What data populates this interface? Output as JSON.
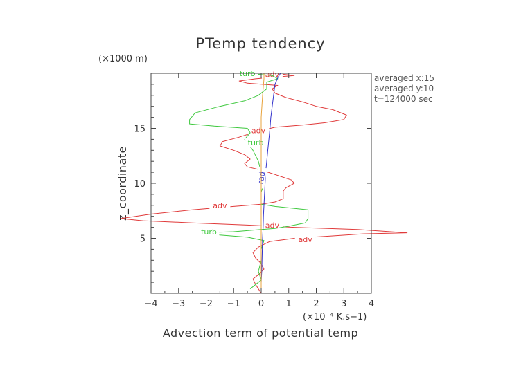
{
  "chart_data": {
    "type": "line",
    "title": "PTemp tendency",
    "xlabel": "Advection term of potential temp",
    "ylabel": "z_coordinate",
    "x_unit": "(×10⁻⁴ K.s−1)",
    "y_unit": "(×1000 m)",
    "xlim": [
      -4,
      4
    ],
    "ylim": [
      0,
      20
    ],
    "xticks": [
      -4,
      -3,
      -2,
      -1,
      0,
      1,
      2,
      3,
      4
    ],
    "yticks": [
      5,
      10,
      15
    ],
    "grid": false,
    "info": [
      "averaged  x:15",
      "averaged  y:10",
      "t=124000 sec"
    ],
    "series": [
      {
        "name": "adv",
        "color": "#e03a3a",
        "labels": [
          {
            "x": -1.5,
            "y": 8.0
          },
          {
            "x": -0.1,
            "y": 14.8
          },
          {
            "x": 0.4,
            "y": 6.2
          },
          {
            "x": 1.6,
            "y": 4.9
          },
          {
            "x": 0.4,
            "y": 19.9
          }
        ],
        "points": [
          [
            0,
            0
          ],
          [
            -0.1,
            0.4
          ],
          [
            -0.2,
            0.8
          ],
          [
            -0.3,
            1.3
          ],
          [
            -0.1,
            1.7
          ],
          [
            0.1,
            2.2
          ],
          [
            0,
            2.7
          ],
          [
            -0.2,
            3.2
          ],
          [
            -0.3,
            3.7
          ],
          [
            -0.1,
            4.2
          ],
          [
            0.3,
            4.7
          ],
          [
            1.2,
            5.0
          ],
          [
            2.5,
            5.2
          ],
          [
            3.7,
            5.4
          ],
          [
            5.3,
            5.5
          ],
          [
            3.5,
            5.8
          ],
          [
            1.2,
            6.0
          ],
          [
            -0.5,
            6.2
          ],
          [
            -2.5,
            6.4
          ],
          [
            -4.3,
            6.6
          ],
          [
            -5.1,
            6.8
          ],
          [
            -4.0,
            7.2
          ],
          [
            -2.5,
            7.6
          ],
          [
            -1.0,
            7.9
          ],
          [
            0,
            8.1
          ],
          [
            0.5,
            8.3
          ],
          [
            0.8,
            8.6
          ],
          [
            0.8,
            9.0
          ],
          [
            0.8,
            9.3
          ],
          [
            0.9,
            9.6
          ],
          [
            1.2,
            10.0
          ],
          [
            1.1,
            10.3
          ],
          [
            0.5,
            10.8
          ],
          [
            0,
            11.2
          ],
          [
            -0.5,
            11.5
          ],
          [
            -0.6,
            11.8
          ],
          [
            -0.4,
            12.2
          ],
          [
            -0.6,
            12.6
          ],
          [
            -1.0,
            13.0
          ],
          [
            -1.5,
            13.4
          ],
          [
            -1.4,
            13.8
          ],
          [
            -0.8,
            14.2
          ],
          [
            -0.3,
            14.6
          ],
          [
            0,
            14.8
          ],
          [
            0.5,
            15.1
          ],
          [
            1.5,
            15.3
          ],
          [
            2.3,
            15.5
          ],
          [
            3.0,
            15.8
          ],
          [
            3.1,
            16.2
          ],
          [
            2.6,
            16.7
          ],
          [
            2.0,
            17.0
          ],
          [
            1.5,
            17.4
          ],
          [
            0.9,
            17.8
          ],
          [
            0.5,
            18.2
          ],
          [
            0.4,
            18.6
          ],
          [
            0.6,
            18.9
          ],
          [
            -0.5,
            19.1
          ],
          [
            -0.8,
            19.3
          ],
          [
            -0.2,
            19.5
          ],
          [
            1.2,
            19.8
          ],
          [
            0.5,
            20.0
          ]
        ]
      },
      {
        "name": "turb",
        "color": "#3ec83e",
        "labels": [
          {
            "x": -1.9,
            "y": 5.6
          },
          {
            "x": -0.2,
            "y": 13.7
          },
          {
            "x": -0.5,
            "y": 20.0
          }
        ],
        "points": [
          [
            -0.4,
            0.4
          ],
          [
            -0.2,
            0.8
          ],
          [
            0,
            1.2
          ],
          [
            -0.1,
            2.0
          ],
          [
            0,
            3.0
          ],
          [
            0,
            4.0
          ],
          [
            0.1,
            4.8
          ],
          [
            -0.5,
            5.1
          ],
          [
            -1.5,
            5.3
          ],
          [
            -2.2,
            5.5
          ],
          [
            -1.0,
            5.6
          ],
          [
            0,
            5.8
          ],
          [
            0.5,
            5.9
          ],
          [
            1.0,
            6.1
          ],
          [
            1.6,
            6.4
          ],
          [
            1.7,
            6.8
          ],
          [
            1.7,
            7.2
          ],
          [
            1.7,
            7.6
          ],
          [
            0.5,
            7.9
          ],
          [
            0,
            8.1
          ],
          [
            0,
            8.6
          ],
          [
            0,
            9.2
          ],
          [
            0.1,
            10.0
          ],
          [
            0,
            11.0
          ],
          [
            -0.1,
            12.0
          ],
          [
            -0.3,
            13.0
          ],
          [
            -0.6,
            14.0
          ],
          [
            -0.4,
            14.6
          ],
          [
            -0.5,
            15.0
          ],
          [
            -1.7,
            15.2
          ],
          [
            -2.6,
            15.4
          ],
          [
            -2.6,
            15.8
          ],
          [
            -2.4,
            16.4
          ],
          [
            -1.5,
            17.0
          ],
          [
            -0.6,
            17.5
          ],
          [
            -0.1,
            18.0
          ],
          [
            0.2,
            18.6
          ],
          [
            0.2,
            19.2
          ],
          [
            0.6,
            19.5
          ],
          [
            0.4,
            19.8
          ],
          [
            -0.5,
            20.0
          ]
        ]
      },
      {
        "name": "rad",
        "color": "#3333cc",
        "labels": [
          {
            "x": 0.0,
            "y": 10.5
          }
        ],
        "points": [
          [
            0,
            0
          ],
          [
            0,
            1.0
          ],
          [
            0.02,
            2.0
          ],
          [
            0.03,
            3.0
          ],
          [
            0.04,
            4.0
          ],
          [
            0.05,
            5.0
          ],
          [
            0.07,
            6.0
          ],
          [
            0.08,
            7.0
          ],
          [
            0.1,
            8.0
          ],
          [
            0.12,
            9.0
          ],
          [
            0.14,
            10.0
          ],
          [
            0.16,
            11.0
          ],
          [
            0.2,
            12.0
          ],
          [
            0.24,
            13.0
          ],
          [
            0.28,
            14.0
          ],
          [
            0.32,
            15.0
          ],
          [
            0.35,
            16.0
          ],
          [
            0.4,
            17.0
          ],
          [
            0.45,
            18.0
          ],
          [
            0.5,
            19.0
          ],
          [
            0.6,
            19.6
          ],
          [
            0.7,
            20.0
          ]
        ]
      },
      {
        "name": "",
        "color": "#e8a33c",
        "labels": [],
        "points": [
          [
            0,
            0
          ],
          [
            0,
            4.0
          ],
          [
            0,
            8.0
          ],
          [
            0,
            12.0
          ],
          [
            0,
            16.0
          ],
          [
            0.05,
            18.0
          ],
          [
            0.1,
            19.5
          ],
          [
            0.1,
            20.0
          ]
        ]
      }
    ]
  }
}
